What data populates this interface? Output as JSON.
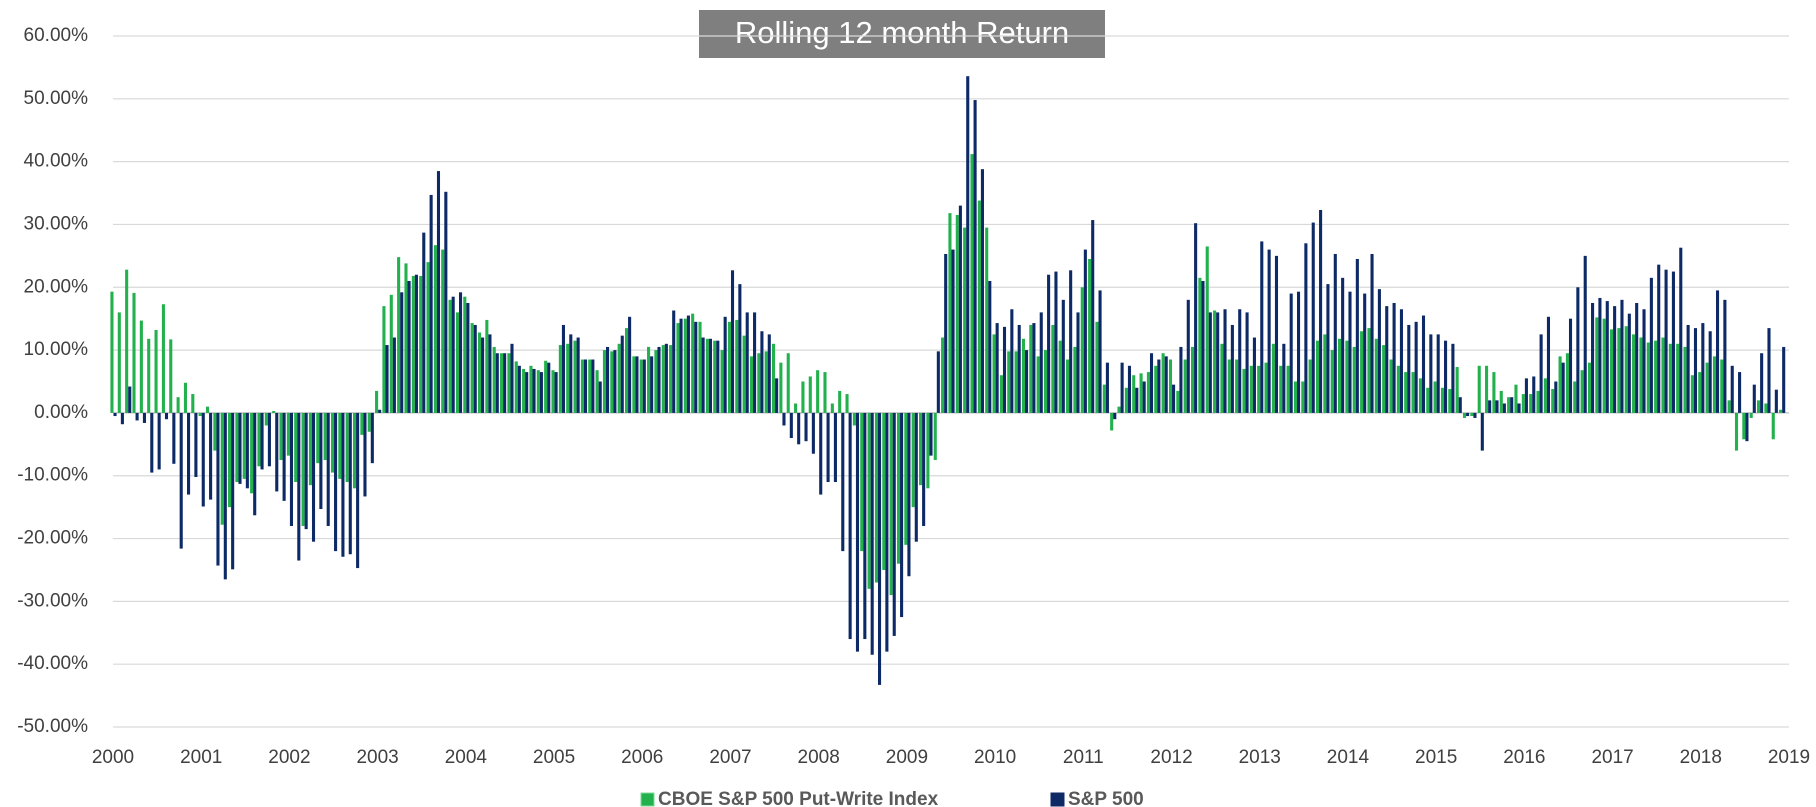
{
  "chart_data": {
    "type": "bar",
    "title": "Rolling 12 month Return",
    "categories": [
      "2000",
      null,
      null,
      null,
      null,
      null,
      null,
      null,
      null,
      null,
      null,
      null,
      "2001",
      null,
      null,
      null,
      null,
      null,
      null,
      null,
      null,
      null,
      null,
      null,
      "2002",
      null,
      null,
      null,
      null,
      null,
      null,
      null,
      null,
      null,
      null,
      null,
      "2003",
      null,
      null,
      null,
      null,
      null,
      null,
      null,
      null,
      null,
      null,
      null,
      "2004",
      null,
      null,
      null,
      null,
      null,
      null,
      null,
      null,
      null,
      null,
      null,
      "2005",
      null,
      null,
      null,
      null,
      null,
      null,
      null,
      null,
      null,
      null,
      null,
      "2006",
      null,
      null,
      null,
      null,
      null,
      null,
      null,
      null,
      null,
      null,
      null,
      "2007",
      null,
      null,
      null,
      null,
      null,
      null,
      null,
      null,
      null,
      null,
      null,
      "2008",
      null,
      null,
      null,
      null,
      null,
      null,
      null,
      null,
      null,
      null,
      null,
      "2009",
      null,
      null,
      null,
      null,
      null,
      null,
      null,
      null,
      null,
      null,
      null,
      "2010",
      null,
      null,
      null,
      null,
      null,
      null,
      null,
      null,
      null,
      null,
      null,
      "2011",
      null,
      null,
      null,
      null,
      null,
      null,
      null,
      null,
      null,
      null,
      null,
      "2012",
      null,
      null,
      null,
      null,
      null,
      null,
      null,
      null,
      null,
      null,
      null,
      "2013",
      null,
      null,
      null,
      null,
      null,
      null,
      null,
      null,
      null,
      null,
      null,
      "2014",
      null,
      null,
      null,
      null,
      null,
      null,
      null,
      null,
      null,
      null,
      null,
      "2015",
      null,
      null,
      null,
      null,
      null,
      null,
      null,
      null,
      null,
      null,
      null,
      "2016",
      null,
      null,
      null,
      null,
      null,
      null,
      null,
      null,
      null,
      null,
      null,
      "2017",
      null,
      null,
      null,
      null,
      null,
      null,
      null,
      null,
      null,
      null,
      null,
      "2018",
      null,
      null,
      null,
      null,
      null,
      null,
      null,
      null,
      null,
      null,
      null,
      "2019"
    ],
    "series": [
      {
        "name": "CBOE S&P 500 Put-Write Index",
        "color": "#22b14c",
        "values": [
          19.3,
          16.0,
          22.8,
          19.1,
          14.7,
          11.8,
          13.2,
          17.3,
          11.7,
          2.5,
          4.8,
          3.0,
          -0.5,
          1.0,
          -6.0,
          -17.8,
          -15.0,
          -11.0,
          -10.5,
          -12.8,
          -8.5,
          -2.0,
          0.3,
          -7.5,
          -6.8,
          -11.0,
          -18.0,
          -11.5,
          -8.0,
          -7.5,
          -9.5,
          -10.5,
          -11.0,
          -12.0,
          -3.5,
          -3.0,
          3.5,
          17.0,
          18.8,
          24.8,
          23.8,
          21.8,
          21.8,
          24.0,
          26.7,
          26.0,
          18.0,
          16.0,
          18.5,
          14.3,
          12.8,
          14.8,
          10.5,
          9.5,
          9.5,
          8.2,
          7.0,
          7.5,
          6.8,
          8.3,
          6.8,
          10.8,
          11.0,
          11.5,
          8.5,
          8.5,
          6.8,
          10.0,
          9.8,
          11.0,
          13.5,
          9.0,
          8.5,
          10.5,
          10.0,
          10.8,
          10.8,
          14.3,
          15.0,
          15.8,
          14.5,
          11.8,
          11.5,
          10.0,
          14.5,
          14.8,
          12.3,
          9.0,
          9.5,
          9.8,
          11.0,
          8.0,
          9.5,
          1.5,
          5.0,
          5.8,
          6.8,
          6.5,
          1.5,
          3.5,
          3.0,
          -2.0,
          -22.0,
          -28.0,
          -27.0,
          -25.0,
          -29.0,
          -24.0,
          -21.0,
          -15.0,
          -11.5,
          -12.0,
          -7.5,
          12.0,
          31.8,
          31.5,
          29.5,
          41.2,
          33.8,
          29.5,
          12.5,
          6.0,
          9.8,
          9.8,
          11.8,
          14.0,
          9.0,
          10.0,
          14.0,
          11.5,
          8.5,
          10.5,
          20.0,
          24.5,
          14.5,
          4.5,
          -2.8,
          1.0,
          4.0,
          6.0,
          6.3,
          6.5,
          7.5,
          9.5,
          8.5,
          3.5,
          8.5,
          10.5,
          21.5,
          26.5,
          16.3,
          11.0,
          8.5,
          8.5,
          7.0,
          7.5,
          7.5,
          8.0,
          11.0,
          7.5,
          7.5,
          5.0,
          5.0,
          8.5,
          11.5,
          12.5,
          10.0,
          11.8,
          11.5,
          10.5,
          13.0,
          13.5,
          11.8,
          10.8,
          8.5,
          7.5,
          6.5,
          6.5,
          5.5,
          4.0,
          5.0,
          4.0,
          3.8,
          7.3,
          -0.8,
          -0.5,
          7.5,
          7.5,
          6.5,
          3.5,
          2.5,
          4.5,
          3.0,
          3.0,
          3.5,
          5.5,
          3.8,
          9.0,
          9.5,
          5.0,
          6.8,
          8.0,
          15.2,
          15.0,
          13.3,
          13.5,
          13.8,
          12.5,
          12.0,
          11.2,
          11.5,
          12.0,
          11.0,
          11.0,
          10.5,
          6.0,
          6.5,
          8.0,
          9.0,
          8.5,
          2.0,
          -6.0,
          -4.2,
          -0.8,
          2.0,
          1.5,
          -4.2,
          0.5,
          null
        ]
      },
      {
        "name": "S&P 500",
        "color": "#0d2a66",
        "values": [
          -0.5,
          -1.8,
          4.2,
          -1.2,
          -1.6,
          -9.5,
          -9.0,
          -1.0,
          -8.1,
          -21.6,
          -13.0,
          -10.2,
          -14.9,
          -13.8,
          -24.3,
          -26.5,
          -24.9,
          -11.3,
          -12.0,
          -16.3,
          -9.0,
          -8.5,
          -12.5,
          -14.0,
          -18.0,
          -23.5,
          -18.5,
          -20.5,
          -15.3,
          -18.0,
          -22.0,
          -22.9,
          -22.5,
          -24.7,
          -13.3,
          -8.0,
          0.5,
          10.8,
          12.0,
          19.2,
          21.0,
          22.0,
          28.7,
          34.7,
          38.5,
          35.2,
          18.5,
          19.2,
          17.5,
          14.0,
          12.0,
          12.5,
          9.5,
          9.5,
          11.0,
          7.5,
          6.5,
          7.0,
          6.5,
          8.0,
          6.5,
          14.0,
          12.5,
          12.0,
          8.5,
          8.5,
          5.0,
          10.5,
          10.0,
          12.3,
          15.3,
          9.0,
          8.5,
          9.0,
          10.5,
          11.0,
          16.3,
          15.0,
          15.5,
          14.5,
          12.0,
          11.8,
          11.5,
          15.3,
          22.7,
          20.5,
          16.0,
          16.0,
          13.0,
          12.5,
          5.5,
          -2.0,
          -4.0,
          -5.0,
          -4.5,
          -6.5,
          -13.0,
          -11.0,
          -11.0,
          -22.0,
          -36.0,
          -38.0,
          -36.0,
          -38.5,
          -43.3,
          -38.0,
          -35.5,
          -32.5,
          -26.0,
          -20.5,
          -18.0,
          -6.8,
          9.8,
          25.3,
          26.0,
          33.0,
          53.6,
          49.8,
          38.8,
          21.0,
          14.3,
          13.7,
          16.5,
          14.0,
          10.0,
          14.3,
          16.0,
          22.0,
          22.5,
          18.0,
          22.7,
          16.0,
          26.0,
          30.7,
          19.5,
          8.0,
          -1.0,
          8.0,
          7.5,
          4.0,
          5.0,
          9.5,
          8.5,
          9.0,
          4.5,
          10.5,
          18.0,
          30.2,
          21.0,
          16.0,
          16.0,
          16.5,
          14.0,
          16.5,
          16.0,
          12.0,
          27.3,
          26.0,
          25.0,
          11.0,
          19.0,
          19.3,
          27.0,
          30.3,
          32.3,
          20.5,
          25.3,
          21.5,
          19.3,
          24.5,
          19.0,
          25.3,
          19.7,
          17.0,
          17.5,
          16.5,
          14.0,
          14.5,
          15.5,
          12.5,
          12.5,
          11.5,
          11.0,
          2.5,
          -0.5,
          -0.8,
          -6.0,
          2.0,
          2.0,
          1.5,
          2.5,
          1.5,
          5.5,
          5.8,
          12.5,
          15.3,
          5.0,
          8.0,
          15.0,
          20.0,
          25.0,
          17.5,
          18.3,
          17.8,
          17.0,
          18.0,
          15.8,
          17.5,
          16.5,
          21.5,
          23.6,
          22.8,
          22.5,
          26.3,
          14.0,
          13.5,
          14.3,
          13.0,
          19.5,
          18.0,
          7.5,
          6.5,
          -4.5,
          4.5,
          9.5,
          13.5,
          3.7,
          10.5,
          null
        ]
      }
    ],
    "ylim": [
      -50,
      60
    ],
    "yticks": [
      {
        "value": -50,
        "label": "-50.00%"
      },
      {
        "value": -40,
        "label": "-40.00%"
      },
      {
        "value": -30,
        "label": "-30.00%"
      },
      {
        "value": -20,
        "label": "-20.00%"
      },
      {
        "value": -10,
        "label": "-10.00%"
      },
      {
        "value": 0,
        "label": "0.00%"
      },
      {
        "value": 10,
        "label": "10.00%"
      },
      {
        "value": 20,
        "label": "20.00%"
      },
      {
        "value": 30,
        "label": "30.00%"
      },
      {
        "value": 40,
        "label": "40.00%"
      },
      {
        "value": 50,
        "label": "50.00%"
      },
      {
        "value": 60,
        "label": "60.00%"
      }
    ],
    "grid": true,
    "legend": "bottom"
  }
}
